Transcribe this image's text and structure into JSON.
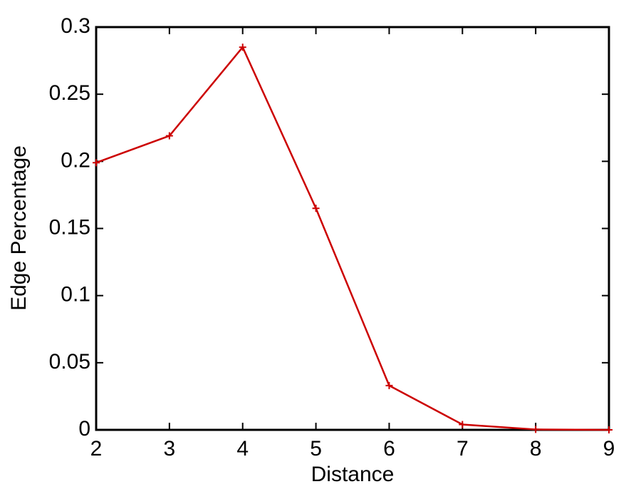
{
  "chart_data": {
    "type": "line",
    "x_label": "Distance",
    "y_label": "Edge Percentage",
    "x": [
      2,
      3,
      4,
      5,
      6,
      7,
      8,
      9
    ],
    "values": [
      0.199,
      0.219,
      0.285,
      0.165,
      0.033,
      0.004,
      0.0003,
      0
    ],
    "color": "#cc0000",
    "xlim": [
      2,
      9
    ],
    "xticks": [
      2,
      3,
      4,
      5,
      6,
      7,
      8,
      9
    ],
    "ylim": [
      0,
      0.3
    ],
    "yticks": [
      0,
      0.05,
      0.1,
      0.15,
      0.2,
      0.25,
      0.3
    ],
    "grid": false,
    "marker": "+"
  }
}
